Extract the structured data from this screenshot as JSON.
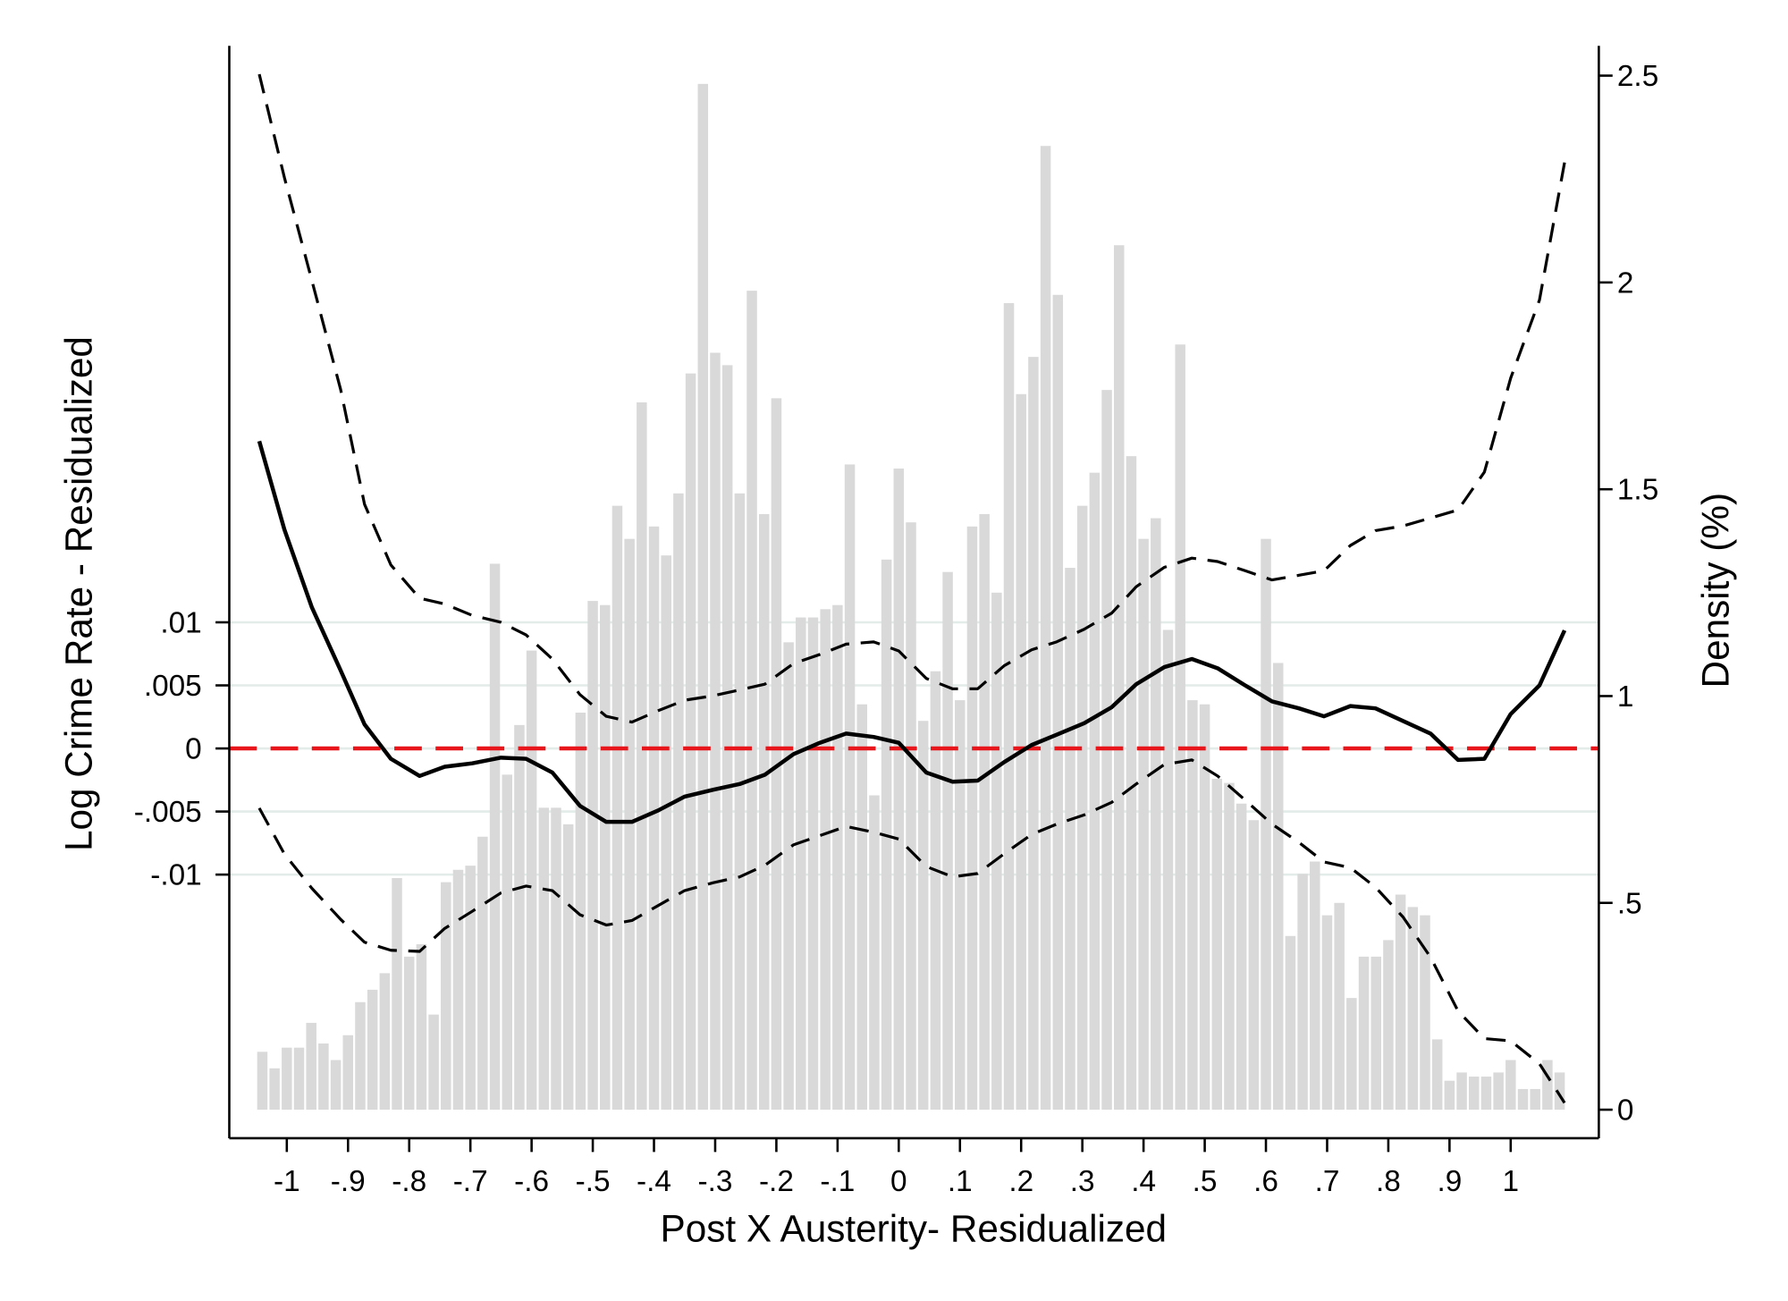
{
  "chart_data": {
    "type": "line",
    "x_label": "Post X Austerity- Residualized",
    "y_label": "Log Crime Rate - Residualized",
    "y2_label": "Density (%)",
    "xlim": [
      -1.094,
      1.144
    ],
    "ylim": [
      -0.0309,
      0.0557
    ],
    "y2lim": [
      -0.069,
      2.572
    ],
    "xticks": [
      -1,
      {
        "value": -0.9,
        "label": "-.9"
      },
      {
        "value": -0.8,
        "label": "-.8"
      },
      {
        "value": -0.7,
        "label": "-.7"
      },
      {
        "value": -0.6,
        "label": "-.6"
      },
      {
        "value": -0.5,
        "label": "-.5"
      },
      {
        "value": -0.4,
        "label": "-.4"
      },
      {
        "value": -0.3,
        "label": "-.3"
      },
      {
        "value": -0.2,
        "label": "-.2"
      },
      {
        "value": -0.1,
        "label": "-.1"
      },
      0,
      {
        "value": 0.1,
        "label": ".1"
      },
      {
        "value": 0.2,
        "label": ".2"
      },
      {
        "value": 0.3,
        "label": ".3"
      },
      {
        "value": 0.4,
        "label": ".4"
      },
      {
        "value": 0.5,
        "label": ".5"
      },
      {
        "value": 0.6,
        "label": ".6"
      },
      {
        "value": 0.7,
        "label": ".7"
      },
      {
        "value": 0.8,
        "label": ".8"
      },
      {
        "value": 0.9,
        "label": ".9"
      },
      1
    ],
    "yticks": [
      {
        "value": -0.01,
        "label": "-.01"
      },
      {
        "value": -0.005,
        "label": "-.005"
      },
      0,
      {
        "value": 0.005,
        "label": ".005"
      },
      {
        "value": 0.01,
        "label": ".01"
      }
    ],
    "y2ticks": [
      0,
      {
        "value": 0.5,
        "label": ".5"
      },
      1,
      1.5,
      2,
      2.5
    ],
    "grid": true,
    "grid_color": "#e3ece9",
    "reference_line": {
      "value": 0,
      "color": "#e8161b",
      "dash": true
    },
    "histogram": {
      "type": "histogram",
      "axis": "y2",
      "color": "#d9d9d9",
      "bins": [
        -1.05,
        -1.03,
        -1.01,
        -0.99,
        -0.97,
        -0.95,
        -0.93,
        -0.91,
        -0.89,
        -0.87,
        -0.85,
        -0.83,
        -0.81,
        -0.79,
        -0.77,
        -0.75,
        -0.73,
        -0.71,
        -0.69,
        -0.67,
        -0.65,
        -0.63,
        -0.61,
        -0.59,
        -0.57,
        -0.55,
        -0.53,
        -0.51,
        -0.49,
        -0.47,
        -0.45,
        -0.43,
        -0.41,
        -0.39,
        -0.37,
        -0.35,
        -0.33,
        -0.31,
        -0.29,
        -0.27,
        -0.25,
        -0.23,
        -0.21,
        -0.19,
        -0.17,
        -0.15,
        -0.13,
        -0.11,
        -0.09,
        -0.07,
        -0.05,
        -0.03,
        -0.01,
        0.01,
        0.03,
        0.05,
        0.07,
        0.09,
        0.11,
        0.13,
        0.15,
        0.17,
        0.19,
        0.21,
        0.23,
        0.25,
        0.27,
        0.29,
        0.31,
        0.33,
        0.35,
        0.37,
        0.39,
        0.41,
        0.43,
        0.45,
        0.47,
        0.49,
        0.51,
        0.53,
        0.55,
        0.57,
        0.59,
        0.61,
        0.63,
        0.65,
        0.67,
        0.69,
        0.71,
        0.73,
        0.75,
        0.77,
        0.79,
        0.81,
        0.83,
        0.85,
        0.87,
        0.89,
        0.91,
        0.93,
        0.95,
        0.97,
        0.99,
        1.01,
        1.03,
        1.05,
        1.07,
        1.09
      ],
      "values": [
        0.14,
        0.1,
        0.15,
        0.15,
        0.21,
        0.16,
        0.12,
        0.18,
        0.26,
        0.29,
        0.33,
        0.56,
        0.37,
        0.4,
        0.23,
        0.55,
        0.58,
        0.59,
        0.66,
        1.32,
        0.81,
        0.93,
        1.11,
        0.73,
        0.73,
        0.69,
        0.96,
        1.23,
        1.22,
        1.46,
        1.38,
        1.71,
        1.41,
        1.34,
        1.49,
        1.78,
        2.48,
        1.83,
        1.8,
        1.49,
        1.98,
        1.44,
        1.72,
        1.13,
        1.19,
        1.19,
        1.21,
        1.22,
        1.56,
        0.98,
        0.76,
        1.33,
        1.55,
        1.42,
        0.94,
        1.06,
        1.3,
        0.99,
        1.41,
        1.44,
        1.25,
        1.95,
        1.73,
        1.82,
        2.33,
        1.97,
        1.31,
        1.46,
        1.54,
        1.74,
        2.09,
        1.58,
        1.38,
        1.43,
        1.16,
        1.85,
        0.99,
        0.98,
        0.8,
        0.79,
        0.74,
        0.7,
        1.38,
        1.08,
        0.42,
        0.57,
        0.6,
        0.47,
        0.5,
        0.27,
        0.37,
        0.37,
        0.41,
        0.52,
        0.49,
        0.47,
        0.17,
        0.07,
        0.09,
        0.08,
        0.08,
        0.09,
        0.12,
        0.05,
        0.05,
        0.12,
        0.09
      ]
    },
    "x": [
      -1.045,
      -1.004,
      -0.959,
      -0.912,
      -0.873,
      -0.83,
      -0.783,
      -0.742,
      -0.697,
      -0.65,
      -0.609,
      -0.566,
      -0.521,
      -0.478,
      -0.436,
      -0.393,
      -0.35,
      -0.303,
      -0.26,
      -0.219,
      -0.172,
      -0.129,
      -0.086,
      -0.041,
      0,
      0.045,
      0.088,
      0.129,
      0.172,
      0.217,
      0.258,
      0.303,
      0.348,
      0.388,
      0.434,
      0.479,
      0.521,
      0.566,
      0.61,
      0.654,
      0.695,
      0.738,
      0.779,
      0.824,
      0.869,
      0.914,
      0.957,
      1,
      1.047,
      1.088
    ],
    "series": [
      {
        "color": "#000000",
        "dash": false,
        "values": [
          0.02436,
          0.01736,
          0.01118,
          0.00618,
          0.00191,
          -0.00082,
          -0.00218,
          -0.00145,
          -0.00118,
          -0.00073,
          -0.00082,
          -0.00191,
          -0.00455,
          -0.00582,
          -0.00582,
          -0.00491,
          -0.00382,
          -0.00327,
          -0.00282,
          -0.00209,
          -0.00045,
          0.00045,
          0.00118,
          0.00091,
          0.00045,
          -0.00191,
          -0.00264,
          -0.00255,
          -0.00109,
          0.00027,
          0.00109,
          0.002,
          0.00327,
          0.00509,
          0.00645,
          0.00709,
          0.00636,
          0.005,
          0.00373,
          0.00318,
          0.00255,
          0.00336,
          0.00318,
          0.00218,
          0.00118,
          -0.00091,
          -0.00082,
          0.00273,
          0.005,
          0.00936
        ]
      },
      {
        "color": "#000000",
        "dash": true,
        "values": [
          0.05345,
          0.04527,
          0.03709,
          0.02845,
          0.01936,
          0.01455,
          0.01191,
          0.01145,
          0.01055,
          0.01,
          0.009,
          0.00709,
          0.00427,
          0.00255,
          0.00209,
          0.003,
          0.00382,
          0.00418,
          0.00464,
          0.00509,
          0.00673,
          0.00745,
          0.00827,
          0.00845,
          0.00773,
          0.00555,
          0.00473,
          0.00473,
          0.00655,
          0.00782,
          0.00845,
          0.00945,
          0.01073,
          0.01282,
          0.01436,
          0.01509,
          0.01482,
          0.01409,
          0.01336,
          0.01373,
          0.01409,
          0.01609,
          0.01727,
          0.01764,
          0.01827,
          0.01891,
          0.02191,
          0.02936,
          0.03555,
          0.04645
        ]
      },
      {
        "color": "#000000",
        "dash": true,
        "values": [
          -0.00473,
          -0.00836,
          -0.01109,
          -0.01355,
          -0.01536,
          -0.016,
          -0.01609,
          -0.01427,
          -0.01291,
          -0.01145,
          -0.01091,
          -0.01127,
          -0.01318,
          -0.014,
          -0.01364,
          -0.01245,
          -0.01127,
          -0.01064,
          -0.01018,
          -0.00927,
          -0.00764,
          -0.00691,
          -0.00618,
          -0.00664,
          -0.00718,
          -0.00936,
          -0.01018,
          -0.00991,
          -0.00836,
          -0.00682,
          -0.006,
          -0.00527,
          -0.00427,
          -0.00282,
          -0.00127,
          -0.00091,
          -0.00218,
          -0.00409,
          -0.006,
          -0.00745,
          -0.009,
          -0.00945,
          -0.011,
          -0.01336,
          -0.01655,
          -0.02082,
          -0.023,
          -0.02318,
          -0.025,
          -0.02809
        ]
      }
    ]
  }
}
